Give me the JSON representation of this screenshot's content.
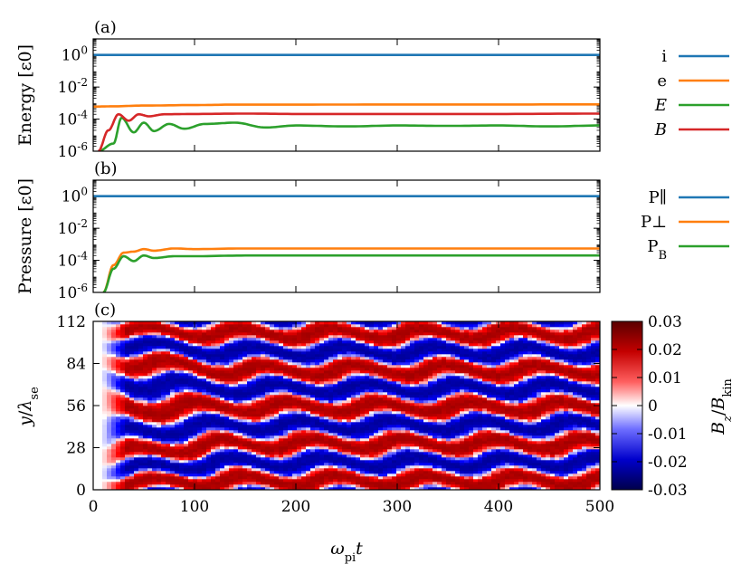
{
  "figure": {
    "xlabel": "ω_pi t"
  },
  "chart_data": [
    {
      "type": "line",
      "panel": "(a)",
      "ylabel": "Energy [ε0]",
      "xlim": [
        0,
        500
      ],
      "ylim": [
        1e-06,
        10
      ],
      "yscale": "log",
      "yticks": [
        "10^0",
        "10^-2",
        "10^-4",
        "10^-6"
      ],
      "legend_position": "right",
      "series": [
        {
          "name": "i",
          "color": "#1f77b4",
          "x": [
            0,
            500
          ],
          "y": [
            1,
            1
          ]
        },
        {
          "name": "e",
          "color": "#ff7f0e",
          "x": [
            0,
            20,
            50,
            100,
            140,
            200,
            300,
            400,
            500
          ],
          "y": [
            0.0006,
            0.00063,
            0.0007,
            0.00075,
            0.0008,
            0.0008,
            0.00082,
            0.00082,
            0.00083
          ]
        },
        {
          "name": "E",
          "color": "#2ca02c",
          "x": [
            5,
            20,
            28,
            40,
            50,
            60,
            75,
            90,
            110,
            140,
            170,
            200,
            250,
            300,
            350,
            400,
            450,
            500
          ],
          "y": [
            1e-06,
            3e-06,
            0.00012,
            1.5e-05,
            6e-05,
            1.8e-05,
            5e-05,
            2.5e-05,
            5e-05,
            6e-05,
            3e-05,
            4e-05,
            3.5e-05,
            4e-05,
            3.8e-05,
            4e-05,
            3.5e-05,
            4e-05
          ]
        },
        {
          "name": "B",
          "color": "#d62728",
          "x": [
            5,
            15,
            25,
            35,
            45,
            55,
            70,
            100,
            150,
            200,
            300,
            400,
            500
          ],
          "y": [
            1e-06,
            2e-05,
            0.0002,
            8e-05,
            0.0002,
            0.00015,
            0.0002,
            0.00021,
            0.00022,
            0.00021,
            0.00021,
            0.00021,
            0.00022
          ]
        }
      ]
    },
    {
      "type": "line",
      "panel": "(b)",
      "ylabel": "Pressure [ε0]",
      "xlim": [
        0,
        500
      ],
      "ylim": [
        1e-06,
        10
      ],
      "yscale": "log",
      "yticks": [
        "10^0",
        "10^-2",
        "10^-4",
        "10^-6"
      ],
      "legend_position": "right",
      "series": [
        {
          "name": "P∥",
          "color": "#1f77b4",
          "x": [
            0,
            500
          ],
          "y": [
            1,
            1
          ]
        },
        {
          "name": "P⊥",
          "color": "#ff7f0e",
          "x": [
            10,
            20,
            30,
            40,
            50,
            60,
            80,
            100,
            150,
            200,
            300,
            400,
            500
          ],
          "y": [
            1e-06,
            5e-05,
            0.0003,
            0.00035,
            0.0005,
            0.0004,
            0.00055,
            0.0005,
            0.00055,
            0.00055,
            0.00055,
            0.00055,
            0.00055
          ]
        },
        {
          "name": "P_B",
          "color": "#2ca02c",
          "x": [
            10,
            20,
            30,
            40,
            50,
            60,
            80,
            100,
            150,
            200,
            300,
            400,
            500
          ],
          "y": [
            1e-06,
            3e-05,
            0.00018,
            9e-05,
            0.0002,
            0.00014,
            0.00018,
            0.00018,
            0.0002,
            0.0002,
            0.0002,
            0.0002,
            0.0002
          ]
        }
      ]
    },
    {
      "type": "heatmap",
      "panel": "(c)",
      "ylabel": "y/λ_se",
      "xlabel": "ω_pi t",
      "xlim": [
        0,
        500
      ],
      "ylim": [
        0,
        112
      ],
      "xticks": [
        "0",
        "100",
        "200",
        "300",
        "400",
        "500"
      ],
      "yticks": [
        "0",
        "28",
        "56",
        "84",
        "112"
      ],
      "colorbar": {
        "label": "Bz/Bkin",
        "range": [
          -0.03,
          0.03
        ],
        "ticks": [
          "0.03",
          "0.02",
          "0.01",
          "0",
          "-0.01",
          "-0.02",
          "-0.03"
        ],
        "colormap": "blue-white-red"
      },
      "structure": "horizontal stripes, about 9 alternating red/blue bands over y=0..112, emerging near t≈20, later bands wavy",
      "grid": false
    }
  ]
}
